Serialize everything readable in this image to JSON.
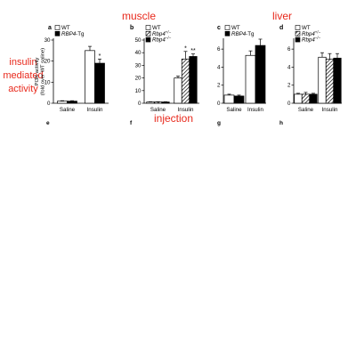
{
  "annotations": {
    "muscle": "muscle",
    "liver": "liver",
    "injection": "injection",
    "side": [
      "insulin",
      "mediated",
      "activity"
    ]
  },
  "colors": {
    "annotation": "#e8291c",
    "ink": "#000000",
    "wt_fill": "#ffffff",
    "tg_fill": "#000000"
  },
  "chart_data": [
    {
      "panel": "a",
      "type": "bar",
      "ylabel": [
        "PI3K activity",
        "(fold over WT saline)"
      ],
      "ylim": [
        0,
        30
      ],
      "yticks": [
        0,
        10,
        20,
        30
      ],
      "categories": [
        "Saline",
        "Insulin"
      ],
      "legend": "top-left",
      "series": [
        {
          "name": "WT",
          "fill": "white",
          "values": [
            1,
            25
          ],
          "err": [
            0.2,
            2
          ]
        },
        {
          "name": "RBP4-Tg",
          "fill": "black",
          "values": [
            1,
            19
          ],
          "err": [
            0.2,
            2
          ]
        }
      ],
      "marks": [
        {
          "series": 1,
          "cat": 1,
          "text": "*"
        }
      ]
    },
    {
      "panel": "b",
      "type": "bar",
      "ylim": [
        0,
        50
      ],
      "yticks": [
        0,
        10,
        20,
        30,
        40,
        50
      ],
      "categories": [
        "Saline",
        "Insulin"
      ],
      "legend": "top-left",
      "series": [
        {
          "name": "WT",
          "fill": "white",
          "values": [
            1,
            20
          ],
          "err": [
            0.2,
            1.5
          ]
        },
        {
          "name": "Rbp4+/−",
          "fill": "hatch",
          "values": [
            1,
            35
          ],
          "err": [
            0.2,
            6
          ]
        },
        {
          "name": "Rbp4−/−",
          "fill": "black",
          "values": [
            1,
            37
          ],
          "err": [
            0.2,
            2
          ]
        }
      ],
      "marks": [
        {
          "series": 1,
          "cat": 1,
          "text": "*"
        },
        {
          "series": 2,
          "cat": 1,
          "text": "**"
        }
      ]
    },
    {
      "panel": "c",
      "type": "bar",
      "ylim": [
        0,
        7
      ],
      "yticks": [
        0,
        2,
        4,
        6
      ],
      "categories": [
        "Saline",
        "Insulin"
      ],
      "legend": "top-left",
      "series": [
        {
          "name": "WT",
          "fill": "white",
          "values": [
            0.9,
            5.3
          ],
          "err": [
            0.1,
            0.5
          ]
        },
        {
          "name": "RBP4-Tg",
          "fill": "black",
          "values": [
            0.8,
            6.4
          ],
          "err": [
            0.1,
            0.7
          ]
        }
      ],
      "marks": []
    },
    {
      "panel": "d",
      "type": "bar",
      "ylim": [
        0,
        7
      ],
      "yticks": [
        0,
        2,
        4,
        6
      ],
      "categories": [
        "Saline",
        "Insulin"
      ],
      "legend": "top-left",
      "series": [
        {
          "name": "WT",
          "fill": "white",
          "values": [
            1,
            5.1
          ],
          "err": [
            0.1,
            0.5
          ]
        },
        {
          "name": "Rbp4+/−",
          "fill": "hatch",
          "values": [
            1,
            4.9
          ],
          "err": [
            0.2,
            0.6
          ]
        },
        {
          "name": "Rbp4−/−",
          "fill": "black",
          "values": [
            1,
            5
          ],
          "err": [
            0.1,
            0.5
          ]
        }
      ],
      "marks": []
    }
  ],
  "cutoff_labels": [
    "e",
    "f",
    "g",
    "h"
  ]
}
